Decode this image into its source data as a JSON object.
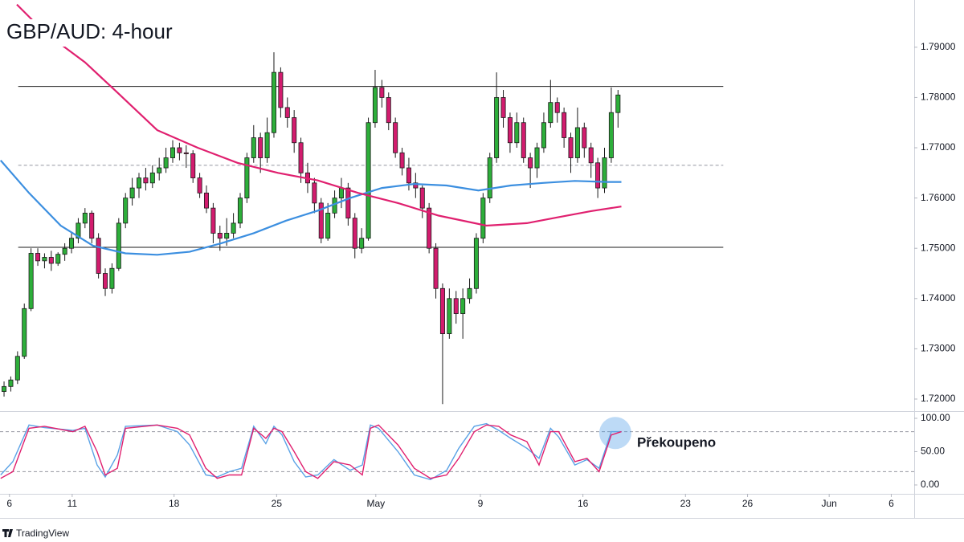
{
  "chart_data": [
    {
      "type": "candlestick",
      "title": "GBP/AUD: 4-hour",
      "up_color": "#2dae3a",
      "down_color": "#d21c6e",
      "outline": "#1b1b1b",
      "candles": [
        [
          1.7215,
          1.7235,
          1.7205,
          1.7225
        ],
        [
          1.7225,
          1.7245,
          1.7215,
          1.7238
        ],
        [
          1.7238,
          1.7295,
          1.723,
          1.7285
        ],
        [
          1.7285,
          1.739,
          1.728,
          1.738
        ],
        [
          1.738,
          1.75,
          1.7375,
          1.749
        ],
        [
          1.749,
          1.75,
          1.7465,
          1.7475
        ],
        [
          1.7475,
          1.749,
          1.746,
          1.7482
        ],
        [
          1.7482,
          1.7495,
          1.7455,
          1.747
        ],
        [
          1.747,
          1.7492,
          1.7465,
          1.7488
        ],
        [
          1.7488,
          1.751,
          1.7475,
          1.75
        ],
        [
          1.75,
          1.753,
          1.749,
          1.752
        ],
        [
          1.752,
          1.756,
          1.751,
          1.755
        ],
        [
          1.755,
          1.758,
          1.754,
          1.757
        ],
        [
          1.757,
          1.7575,
          1.751,
          1.752
        ],
        [
          1.752,
          1.753,
          1.744,
          1.745
        ],
        [
          1.745,
          1.746,
          1.7405,
          1.742
        ],
        [
          1.742,
          1.747,
          1.741,
          1.746
        ],
        [
          1.746,
          1.756,
          1.7455,
          1.755
        ],
        [
          1.755,
          1.761,
          1.754,
          1.76
        ],
        [
          1.76,
          1.764,
          1.7585,
          1.762
        ],
        [
          1.762,
          1.765,
          1.76,
          1.764
        ],
        [
          1.764,
          1.766,
          1.7615,
          1.763
        ],
        [
          1.763,
          1.7665,
          1.762,
          1.765
        ],
        [
          1.765,
          1.768,
          1.7635,
          1.766
        ],
        [
          1.766,
          1.77,
          1.765,
          1.768
        ],
        [
          1.768,
          1.7715,
          1.767,
          1.77
        ],
        [
          1.77,
          1.771,
          1.7675,
          1.769
        ],
        [
          1.769,
          1.7705,
          1.766,
          1.7688
        ],
        [
          1.7688,
          1.7695,
          1.763,
          1.764
        ],
        [
          1.764,
          1.765,
          1.76,
          1.761
        ],
        [
          1.761,
          1.7625,
          1.757,
          1.758
        ],
        [
          1.758,
          1.759,
          1.751,
          1.753
        ],
        [
          1.753,
          1.7545,
          1.7495,
          1.752
        ],
        [
          1.752,
          1.756,
          1.7505,
          1.753
        ],
        [
          1.753,
          1.757,
          1.752,
          1.755
        ],
        [
          1.755,
          1.761,
          1.754,
          1.76
        ],
        [
          1.76,
          1.769,
          1.759,
          1.768
        ],
        [
          1.768,
          1.7745,
          1.767,
          1.772
        ],
        [
          1.772,
          1.773,
          1.765,
          1.768
        ],
        [
          1.768,
          1.776,
          1.767,
          1.773
        ],
        [
          1.773,
          1.789,
          1.772,
          1.785
        ],
        [
          1.785,
          1.786,
          1.776,
          1.778
        ],
        [
          1.778,
          1.78,
          1.774,
          1.776
        ],
        [
          1.776,
          1.7775,
          1.769,
          1.771
        ],
        [
          1.771,
          1.772,
          1.763,
          1.765
        ],
        [
          1.765,
          1.767,
          1.761,
          1.763
        ],
        [
          1.763,
          1.764,
          1.757,
          1.759
        ],
        [
          1.759,
          1.76,
          1.751,
          1.752
        ],
        [
          1.752,
          1.759,
          1.7515,
          1.757
        ],
        [
          1.757,
          1.7615,
          1.756,
          1.76
        ],
        [
          1.76,
          1.764,
          1.758,
          1.762
        ],
        [
          1.762,
          1.763,
          1.7545,
          1.756
        ],
        [
          1.756,
          1.757,
          1.748,
          1.75
        ],
        [
          1.75,
          1.754,
          1.749,
          1.752
        ],
        [
          1.752,
          1.776,
          1.7515,
          1.775
        ],
        [
          1.775,
          1.7855,
          1.774,
          1.782
        ],
        [
          1.782,
          1.7835,
          1.778,
          1.78
        ],
        [
          1.78,
          1.781,
          1.7735,
          1.775
        ],
        [
          1.775,
          1.776,
          1.768,
          1.769
        ],
        [
          1.769,
          1.77,
          1.7645,
          1.766
        ],
        [
          1.766,
          1.768,
          1.7615,
          1.763
        ],
        [
          1.763,
          1.765,
          1.76,
          1.762
        ],
        [
          1.762,
          1.7625,
          1.756,
          1.758
        ],
        [
          1.758,
          1.759,
          1.749,
          1.75
        ],
        [
          1.75,
          1.751,
          1.74,
          1.742
        ],
        [
          1.742,
          1.743,
          1.719,
          1.733
        ],
        [
          1.733,
          1.742,
          1.732,
          1.74
        ],
        [
          1.74,
          1.7415,
          1.735,
          1.737
        ],
        [
          1.737,
          1.742,
          1.732,
          1.74
        ],
        [
          1.74,
          1.744,
          1.739,
          1.742
        ],
        [
          1.742,
          1.753,
          1.741,
          1.752
        ],
        [
          1.752,
          1.761,
          1.751,
          1.76
        ],
        [
          1.76,
          1.769,
          1.759,
          1.768
        ],
        [
          1.768,
          1.785,
          1.767,
          1.78
        ],
        [
          1.78,
          1.7815,
          1.774,
          1.776
        ],
        [
          1.776,
          1.777,
          1.769,
          1.771
        ],
        [
          1.771,
          1.777,
          1.77,
          1.775
        ],
        [
          1.775,
          1.776,
          1.767,
          1.768
        ],
        [
          1.768,
          1.769,
          1.762,
          1.766
        ],
        [
          1.766,
          1.771,
          1.764,
          1.77
        ],
        [
          1.77,
          1.777,
          1.769,
          1.775
        ],
        [
          1.775,
          1.7835,
          1.774,
          1.779
        ],
        [
          1.779,
          1.78,
          1.775,
          1.777
        ],
        [
          1.777,
          1.778,
          1.77,
          1.772
        ],
        [
          1.772,
          1.773,
          1.765,
          1.768
        ],
        [
          1.768,
          1.778,
          1.767,
          1.774
        ],
        [
          1.774,
          1.775,
          1.768,
          1.77
        ],
        [
          1.77,
          1.771,
          1.764,
          1.767
        ],
        [
          1.767,
          1.768,
          1.76,
          1.762
        ],
        [
          1.762,
          1.77,
          1.761,
          1.768
        ],
        [
          1.768,
          1.782,
          1.767,
          1.777
        ],
        [
          1.777,
          1.7815,
          1.774,
          1.7805
        ]
      ],
      "xlim": [
        -0.6,
        134.9
      ],
      "xticks": [
        {
          "value": 0.8,
          "label": "6"
        },
        {
          "value": 10.1,
          "label": "11"
        },
        {
          "value": 25.2,
          "label": "18"
        },
        {
          "value": 40.4,
          "label": "25"
        },
        {
          "value": 55.1,
          "label": "May"
        },
        {
          "value": 70.6,
          "label": "9"
        },
        {
          "value": 85.8,
          "label": "16"
        },
        {
          "value": 101,
          "label": "23"
        },
        {
          "value": 110.2,
          "label": "26"
        },
        {
          "value": 122.3,
          "label": "Jun"
        },
        {
          "value": 131.5,
          "label": "6"
        }
      ],
      "ylim": [
        1.7176,
        1.7986
      ],
      "yticks": [
        {
          "value": 1.72,
          "label": "1.72000"
        },
        {
          "value": 1.73,
          "label": "1.73000"
        },
        {
          "value": 1.74,
          "label": "1.74000"
        },
        {
          "value": 1.75,
          "label": "1.75000"
        },
        {
          "value": 1.76,
          "label": "1.76000"
        },
        {
          "value": 1.77,
          "label": "1.77000"
        },
        {
          "value": 1.78,
          "label": "1.78000"
        },
        {
          "value": 1.79,
          "label": "1.79000"
        }
      ],
      "lines": [
        {
          "color": "#3c8fe0",
          "x": [
            -0.5,
            3.7,
            8.4,
            13.2,
            18,
            22.7,
            27.5,
            32.2,
            37,
            41.8,
            46.5,
            51.3,
            56,
            60.8,
            65.6,
            70.3,
            75.1,
            79.9,
            84.6,
            89.4,
            91.5
          ],
          "values": [
            1.7675,
            1.761,
            1.7545,
            1.7505,
            1.749,
            1.7487,
            1.7493,
            1.751,
            1.753,
            1.7555,
            1.7575,
            1.76,
            1.762,
            1.7628,
            1.7625,
            1.7615,
            1.7625,
            1.763,
            1.7634,
            1.7632,
            1.7632
          ]
        },
        {
          "color": "#e0206f",
          "x": [
            1.9,
            6.0,
            12,
            16.8,
            22.7,
            28.7,
            34.6,
            40.6,
            46.5,
            52.5,
            58.4,
            64.4,
            71.5,
            77.5,
            82.2,
            87,
            91.5
          ],
          "values": [
            1.7985,
            1.793,
            1.787,
            1.781,
            1.7735,
            1.77,
            1.767,
            1.765,
            1.7635,
            1.761,
            1.759,
            1.7565,
            1.7545,
            1.755,
            1.7562,
            1.7574,
            1.7583
          ]
        }
      ],
      "levels": [
        {
          "value": 1.7822,
          "style": "solid",
          "x": [
            2.1,
            106.6
          ]
        },
        {
          "value": 1.7665,
          "style": "dashed",
          "x": [
            2.1,
            106.6
          ]
        },
        {
          "value": 1.7502,
          "style": "solid",
          "x": [
            2.1,
            106.6
          ]
        }
      ]
    },
    {
      "type": "line",
      "xlim": [
        -0.6,
        134.9
      ],
      "x": [
        -0.5,
        1.3,
        3.7,
        6.0,
        10.2,
        12.0,
        13.8,
        15.0,
        16.8,
        18.0,
        22.7,
        25.7,
        27.5,
        29.9,
        31.6,
        33.4,
        35.2,
        37.0,
        38.8,
        40.0,
        41.2,
        43.0,
        44.7,
        46.5,
        48.9,
        51.3,
        53.1,
        54.3,
        55.5,
        58.4,
        60.8,
        63.2,
        65.6,
        67.4,
        69.7,
        71.5,
        73.3,
        75.1,
        77.5,
        79.3,
        81.0,
        82.2,
        84.6,
        86.4,
        88.2,
        90.0,
        91.5
      ],
      "series": [
        {
          "color": "#5aa2e6",
          "values": [
            15,
            35,
            90,
            86,
            82,
            85,
            30,
            12,
            45,
            88,
            90,
            80,
            60,
            15,
            12,
            20,
            25,
            88,
            62,
            88,
            75,
            35,
            12,
            15,
            38,
            22,
            30,
            90,
            85,
            50,
            15,
            8,
            22,
            55,
            88,
            92,
            82,
            70,
            55,
            40,
            85,
            72,
            30,
            38,
            25,
            80,
            80
          ]
        },
        {
          "color": "#e0206f",
          "values": [
            10,
            20,
            85,
            88,
            80,
            88,
            50,
            15,
            25,
            85,
            90,
            85,
            75,
            25,
            10,
            15,
            15,
            85,
            70,
            85,
            80,
            50,
            20,
            10,
            35,
            30,
            15,
            85,
            90,
            60,
            25,
            10,
            15,
            40,
            80,
            90,
            88,
            75,
            65,
            30,
            80,
            80,
            35,
            40,
            20,
            75,
            80
          ]
        }
      ],
      "ylim": [
        -13.3,
        109.6
      ],
      "yticks": [
        {
          "value": 0,
          "label": "0.00"
        },
        {
          "value": 50,
          "label": "50.00"
        },
        {
          "value": 100,
          "label": "100.00"
        }
      ],
      "levels": [
        {
          "value": 80,
          "style": "dashed"
        },
        {
          "value": 20,
          "style": "dashed"
        }
      ],
      "annotation": {
        "text": "Překoupeno",
        "x": 90.6,
        "y": 78
      }
    }
  ],
  "brand": "TradingView"
}
